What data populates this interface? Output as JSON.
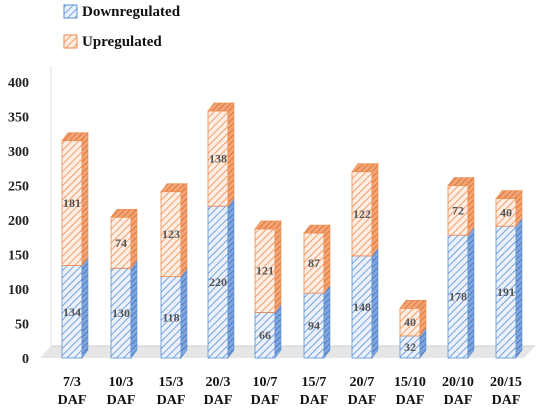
{
  "chart_data": {
    "type": "bar",
    "stacked": true,
    "title": "",
    "xlabel": "",
    "ylabel": "",
    "ylim": [
      0,
      400
    ],
    "yticks": [
      0,
      50,
      100,
      150,
      200,
      250,
      300,
      350,
      400
    ],
    "categories": [
      [
        "7/3",
        "DAF"
      ],
      [
        "10/3",
        "DAF"
      ],
      [
        "15/3",
        "DAF"
      ],
      [
        "20/3",
        "DAF"
      ],
      [
        "10/7",
        "DAF"
      ],
      [
        "15/7",
        "DAF"
      ],
      [
        "20/7",
        "DAF"
      ],
      [
        "15/10",
        "DAF"
      ],
      [
        "20/10",
        "DAF"
      ],
      [
        "20/15",
        "DAF"
      ]
    ],
    "series": [
      {
        "name": "Downregulated",
        "color": "#5b8fd6",
        "values": [
          134,
          130,
          118,
          220,
          66,
          94,
          148,
          32,
          178,
          191
        ]
      },
      {
        "name": "Upregulated",
        "color": "#f08a4b",
        "values": [
          181,
          74,
          123,
          138,
          121,
          87,
          122,
          40,
          72,
          40
        ]
      }
    ],
    "legend_position": "top-left",
    "grid": false,
    "style": "3d-hatched-columns"
  }
}
